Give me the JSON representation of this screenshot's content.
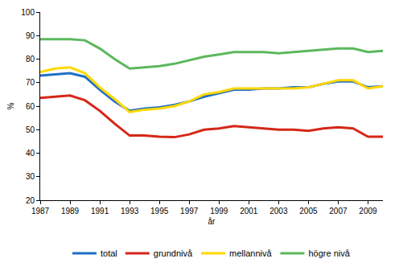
{
  "chart_data": {
    "type": "line",
    "x_label": "år",
    "y_label": "%",
    "x": [
      1987,
      1988,
      1989,
      1990,
      1991,
      1992,
      1993,
      1994,
      1995,
      1996,
      1997,
      1998,
      1999,
      2000,
      2001,
      2002,
      2003,
      2004,
      2005,
      2006,
      2007,
      2008,
      2009,
      2010
    ],
    "series": [
      {
        "name": "total",
        "color": "#1f6fc5",
        "values": [
          73,
          73.5,
          74,
          72.5,
          67,
          62,
          58,
          59,
          59.5,
          60.5,
          62,
          64,
          65.5,
          67,
          67,
          67.5,
          67.5,
          68,
          68,
          69.5,
          70.5,
          70.5,
          68,
          68.5
        ]
      },
      {
        "name": "grundnivå",
        "color": "#d62718",
        "values": [
          63.5,
          64,
          64.5,
          62.5,
          58,
          52.5,
          47.5,
          47.5,
          47,
          46.8,
          48,
          50,
          50.5,
          51.5,
          51,
          50.5,
          50,
          50,
          49.5,
          50.5,
          51,
          50.5,
          47,
          47
        ]
      },
      {
        "name": "mellannivå",
        "color": "#ffd800",
        "values": [
          74.5,
          76,
          76.5,
          74,
          68,
          63,
          57.5,
          58.5,
          59,
          60,
          62,
          65,
          66,
          67.5,
          67.5,
          67.5,
          67.5,
          67.5,
          68,
          69.5,
          71,
          71,
          67.5,
          68.5
        ]
      },
      {
        "name": "högre nivå",
        "color": "#5cb85c",
        "values": [
          88.5,
          88.5,
          88.5,
          88,
          84.5,
          80,
          76,
          76.5,
          77,
          78,
          79.5,
          81,
          82,
          83,
          83,
          83,
          82.5,
          83,
          83.5,
          84,
          84.5,
          84.5,
          83,
          83.5
        ]
      }
    ],
    "xlim": [
      1987,
      2010
    ],
    "xticks": [
      1987,
      1989,
      1991,
      1993,
      1995,
      1997,
      1999,
      2001,
      2003,
      2005,
      2007,
      2009
    ],
    "ylim": [
      20,
      100
    ],
    "yticks": [
      20,
      30,
      40,
      50,
      60,
      70,
      80,
      90,
      100
    ],
    "grid": false,
    "legend": "bottom"
  }
}
